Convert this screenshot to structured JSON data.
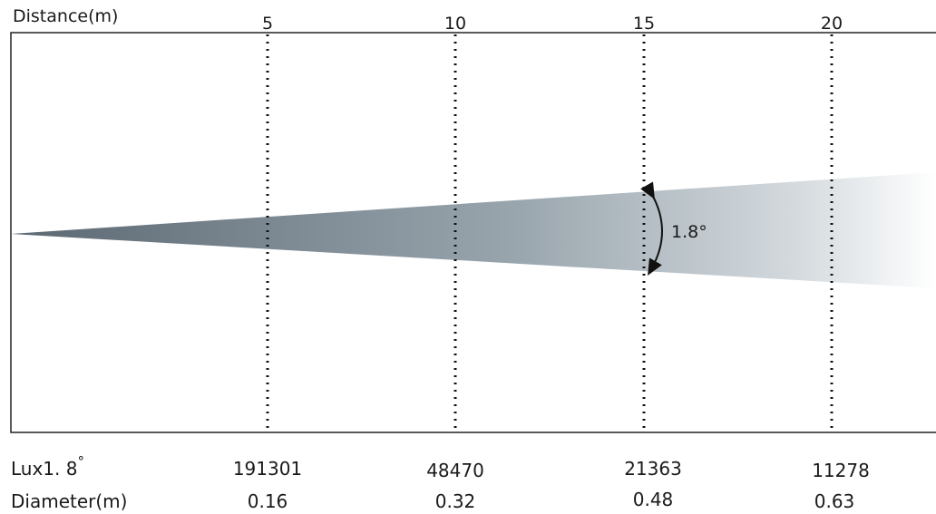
{
  "header": {
    "distance_label": "Distance(m)"
  },
  "distances": [
    "5",
    "10",
    "15",
    "20"
  ],
  "beam": {
    "angle_label": "1.8°"
  },
  "rows": {
    "lux": {
      "label_prefix": "Lux1. 8",
      "label_degree": "°",
      "values": [
        "191301",
        "48470",
        "21363",
        "11278"
      ]
    },
    "diameter": {
      "label": "Diameter(m)",
      "values": [
        "0.16",
        "0.32",
        "0.48",
        "0.63"
      ]
    }
  },
  "colors": {
    "beam_dark": "#5b6873",
    "beam_light": "#ffffff",
    "frame": "#222222"
  }
}
